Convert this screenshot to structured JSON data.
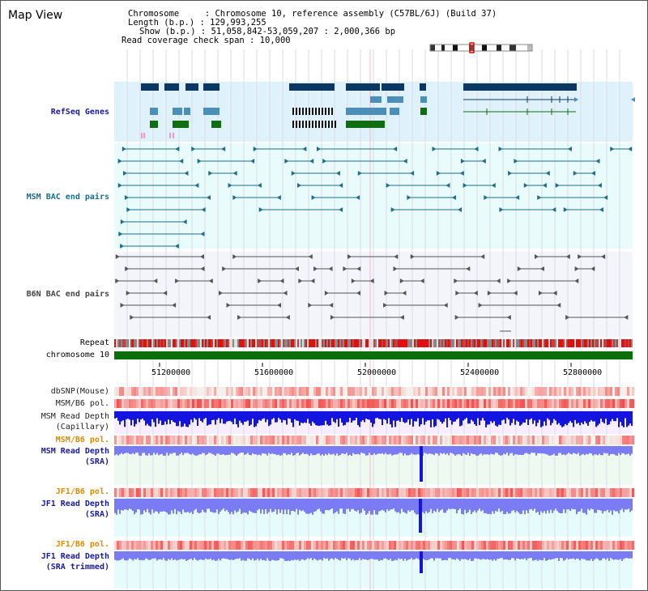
{
  "page_title": "Map View",
  "info": {
    "chromosome": "Chromosome     : Chromosome 10, reference assembly (C57BL/6J) (Build 37)",
    "length": "Length (b.p.) : 129,993,255",
    "show": "Show (b.p.) : 51,058,842-53,059,207 : 2,000,366 bp",
    "coverage": "Read coverage check span : 10,000"
  },
  "tracks": {
    "refseq": "RefSeq Genes",
    "msm_bac": "MSM BAC end pairs",
    "b6n_bac": "B6N BAC end pairs",
    "repeat": "Repeat",
    "chromosome": "chromosome 10",
    "dbsnp": "dbSNP(Mouse)",
    "msm_b6_pol_1": "MSM/B6 pol.",
    "msm_rd_cap_1": "MSM Read Depth",
    "msm_rd_cap_2": "(Capillary)",
    "msm_b6_pol_2": "MSM/B6 pol.",
    "msm_rd_sra_1": "MSM Read Depth",
    "msm_rd_sra_2": "(SRA)",
    "jf1_b6_pol_1": "JF1/B6 pol.",
    "jf1_rd_sra_1": "JF1 Read Depth",
    "jf1_rd_sra_2": "(SRA)",
    "jf1_b6_pol_2": "JF1/B6 pol.",
    "jf1_rd_tr_1": "JF1 Read Depth",
    "jf1_rd_tr_2": "(SRA trimmed)"
  },
  "ruler": [
    "51200000",
    "51600000",
    "52000000",
    "52400000",
    "52800000"
  ],
  "colors": {
    "gene_dark": "#0b3763",
    "gene_mid": "#4a8fb8",
    "gene_green": "#0f6e0f",
    "refseq_bg": "#dff1fb",
    "msm_bg": "#e9fbfb",
    "b6n_bg": "#f4f4fb",
    "depth_blue": "#1414e0",
    "depth_light": "#7b7bf3",
    "pol_red": "#ee2222",
    "label_blue": "#1a1aa0",
    "label_orange": "#e08a00",
    "chrom_green": "#0a6e0a"
  }
}
